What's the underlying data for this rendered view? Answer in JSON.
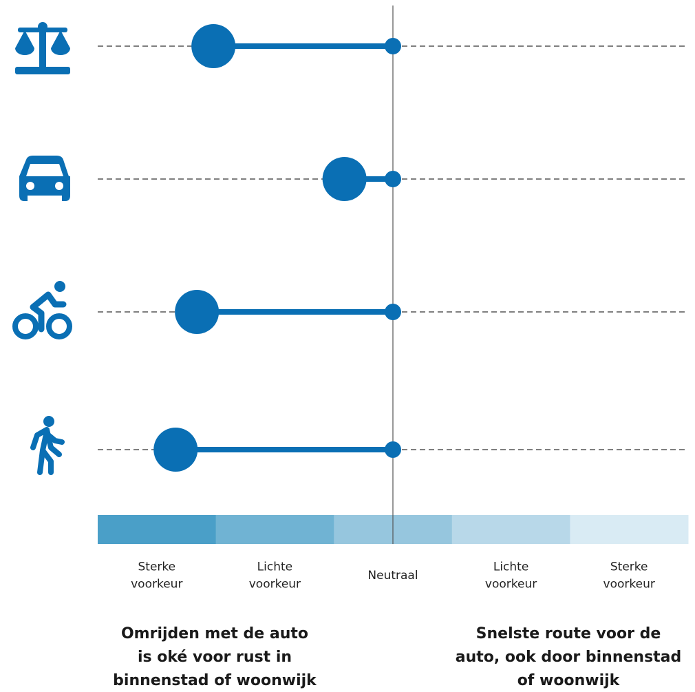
{
  "chart_data": {
    "type": "dumbbell",
    "categories": [
      null,
      null,
      null,
      null
    ],
    "values": [
      -1.52,
      -0.41,
      -1.66,
      -1.84
    ],
    "color": "#0a6fb4",
    "xlim": [
      -2.5,
      2.5
    ],
    "bands": [
      {
        "lines": [
          "Sterke",
          "voorkeur"
        ],
        "color": "#4a9fc8"
      },
      {
        "lines": [
          "Lichte",
          "voorkeur"
        ],
        "color": "#70b3d3"
      },
      {
        "lines": [
          "Neutraal"
        ],
        "color": "#96c6de"
      },
      {
        "lines": [
          "Lichte",
          "voorkeur"
        ],
        "color": "#b8d8e9"
      },
      {
        "lines": [
          "Sterke",
          "voorkeur"
        ],
        "color": "#d9ebf4"
      }
    ],
    "left_caption": [
      "Omrijden met de auto",
      "is oké voor rust in",
      "binnenstad of woonwijk"
    ],
    "right_caption": [
      "Snelste route voor de",
      "auto, ook door binnenstad",
      "of woonwijk"
    ]
  }
}
